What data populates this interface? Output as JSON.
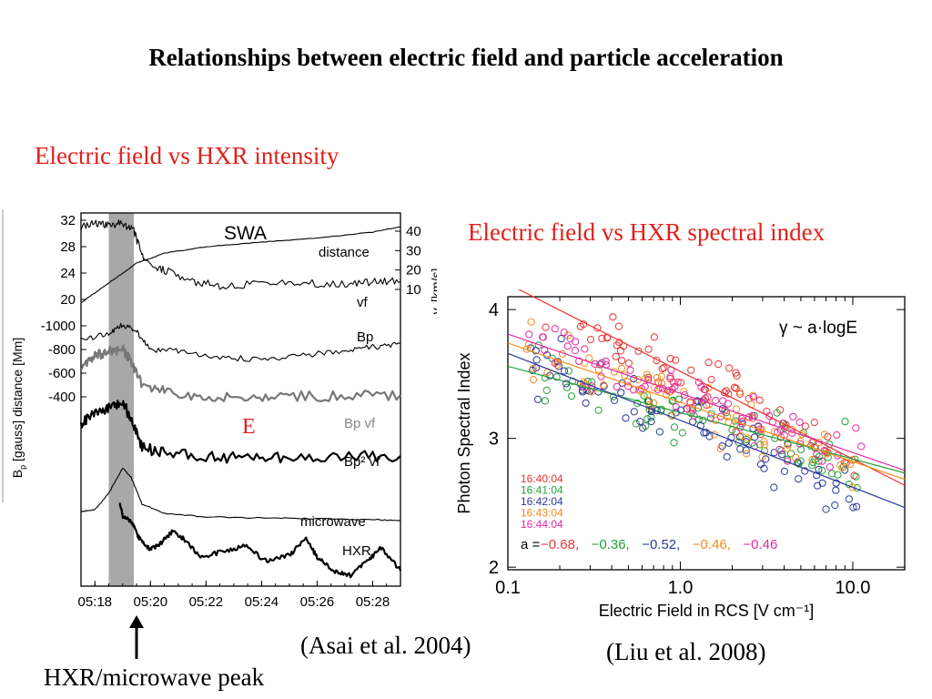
{
  "slide": {
    "title": "Relationships between electric field and particle acceleration",
    "subtitle_left": "Electric field  vs HXR intensity",
    "subtitle_right": "Electric field  vs HXR spectral index",
    "citation_left": "(Asai et al. 2004)",
    "citation_right": "(Liu et al. 2008)",
    "peak_label": "HXR/microwave peak",
    "accent_color": "#e0201c"
  },
  "chart_data": [
    {
      "type": "line",
      "title": "SWA",
      "x_ticks": [
        "05:18",
        "05:20",
        "05:22",
        "05:24",
        "05:26",
        "05:28"
      ],
      "xlim": [
        "05:17.5",
        "05:29"
      ],
      "left_axis_distance": {
        "label": "distance [Mm]",
        "ticks": [
          "32",
          "28",
          "24",
          "20"
        ]
      },
      "left_axis_bp": {
        "label": "Bp [gauss]",
        "ticks": [
          "-1000",
          "-800",
          "-600",
          "-400"
        ]
      },
      "right_axis": {
        "label": "vf [km/s]",
        "ticks": [
          "40",
          "30",
          "20",
          "10"
        ]
      },
      "highlight_band": {
        "from": "05:18.5",
        "to": "05:19.4"
      },
      "annotation": "E",
      "series": [
        {
          "name": "distance",
          "x": [
            17.5,
            18.5,
            19.5,
            20.5,
            22,
            24,
            26,
            28,
            29
          ],
          "y": [
            19.5,
            22.5,
            25.5,
            27.0,
            28.0,
            28.7,
            29.3,
            30.2,
            31.0
          ]
        },
        {
          "name": "vf",
          "x": [
            17.5,
            18.0,
            18.5,
            19.0,
            19.4,
            19.8,
            20.5,
            21.5,
            22.5,
            24,
            25.5,
            27,
            28,
            29
          ],
          "y": [
            42,
            44,
            43,
            44,
            40,
            24,
            20,
            14,
            12,
            13,
            13,
            13,
            14,
            14
          ]
        },
        {
          "name": "Bp",
          "x": [
            17.5,
            18.5,
            19.0,
            19.5,
            20.0,
            21.0,
            22.5,
            24.0,
            25.5,
            27.0,
            28.0,
            29.0
          ],
          "y": [
            -880,
            -940,
            -1010,
            -950,
            -800,
            -790,
            -730,
            -720,
            -750,
            -790,
            -820,
            -850
          ]
        },
        {
          "name": "Bp vf",
          "x": [
            17.5,
            18.0,
            18.5,
            19.0,
            19.3,
            19.7,
            20.5,
            22,
            23.5,
            25,
            27,
            29
          ],
          "y": [
            0.7,
            0.82,
            0.85,
            0.88,
            0.75,
            0.48,
            0.42,
            0.36,
            0.35,
            0.36,
            0.37,
            0.38
          ]
        },
        {
          "name": "Bp² vf",
          "x": [
            17.5,
            18.0,
            18.5,
            19.0,
            19.3,
            19.7,
            20.5,
            22,
            23.5,
            25,
            27,
            29
          ],
          "y": [
            0.55,
            0.68,
            0.75,
            0.8,
            0.62,
            0.3,
            0.25,
            0.2,
            0.19,
            0.2,
            0.21,
            0.21
          ]
        },
        {
          "name": "microwave",
          "x": [
            17.5,
            18.0,
            18.5,
            19.0,
            19.3,
            19.7,
            20.5,
            22,
            24,
            26,
            28,
            29
          ],
          "y": [
            0.2,
            0.22,
            0.4,
            0.68,
            0.58,
            0.28,
            0.18,
            0.14,
            0.13,
            0.12,
            0.11,
            0.1
          ]
        },
        {
          "name": "HXR",
          "x": [
            18.9,
            19.0,
            19.3,
            19.6,
            20.0,
            20.4,
            20.8,
            21.2,
            21.8,
            22.6,
            23.4,
            24.2,
            25.0,
            25.6,
            26.0,
            26.6,
            27.2,
            27.8,
            28.3,
            29.0
          ],
          "y": [
            0.7,
            0.55,
            0.5,
            0.3,
            0.18,
            0.26,
            0.38,
            0.3,
            0.1,
            0.16,
            0.22,
            0.05,
            0.12,
            0.3,
            0.1,
            -0.05,
            -0.1,
            0.05,
            0.2,
            -0.05
          ]
        }
      ]
    },
    {
      "type": "scatter",
      "title": "γ ~ a·logE",
      "xlabel": "Electric Field in RCS [V cm⁻¹]",
      "ylabel": "Photon Spectral Index",
      "x_scale": "log",
      "xlim": [
        0.1,
        20
      ],
      "ylim": [
        1.98,
        4.1
      ],
      "x_ticks": [
        "0.1",
        "1.0",
        "10.0"
      ],
      "y_ticks": [
        "4",
        "3",
        "2"
      ],
      "fit_label_prefix": "a = ",
      "series": [
        {
          "name": "16:40:04",
          "color": "#e83535",
          "slope": -0.68,
          "slope_label": "−0.68",
          "intercept": 3.52
        },
        {
          "name": "16:41:04",
          "color": "#25a038",
          "slope": -0.36,
          "slope_label": "−0.36",
          "intercept": 3.2
        },
        {
          "name": "16:42:04",
          "color": "#2a3a9a",
          "slope": -0.52,
          "slope_label": "−0.52",
          "intercept": 3.14
        },
        {
          "name": "16:43:04",
          "color": "#f08c1c",
          "slope": -0.46,
          "slope_label": "−0.46",
          "intercept": 3.28
        },
        {
          "name": "16:44:04",
          "color": "#e02aa0",
          "slope": -0.46,
          "slope_label": "−0.46",
          "intercept": 3.35
        }
      ]
    }
  ]
}
